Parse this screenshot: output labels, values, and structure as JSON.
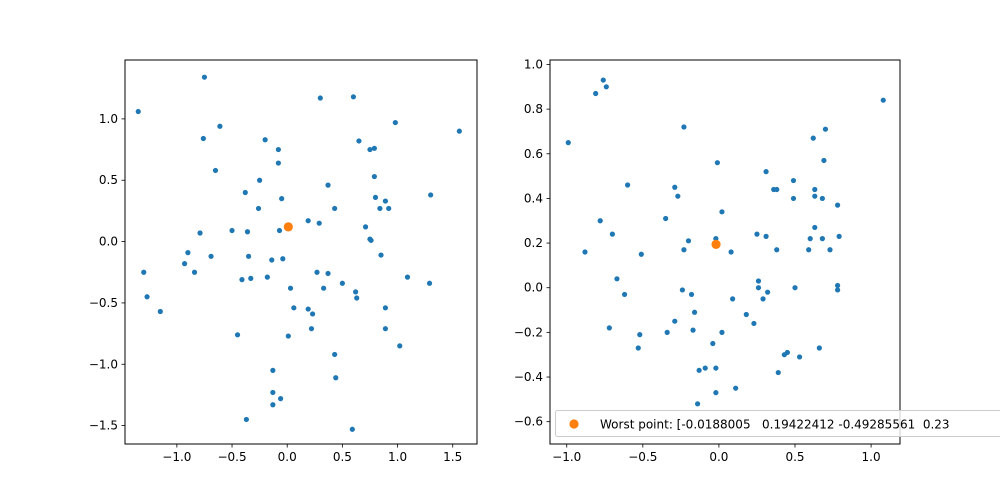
{
  "colors": {
    "points": "#1f77b4",
    "highlight": "#ff7f0e"
  },
  "chart_data": [
    {
      "type": "scatter",
      "xlim": [
        -1.47,
        1.72
      ],
      "ylim": [
        -1.65,
        1.48
      ],
      "xticks": [
        -1.0,
        -0.5,
        0.0,
        0.5,
        1.0,
        1.5
      ],
      "xtick_labels": [
        "−1.0",
        "−0.5",
        "0.0",
        "0.5",
        "1.0",
        "1.5"
      ],
      "yticks": [
        -1.5,
        -1.0,
        -0.5,
        0.0,
        0.5,
        1.0
      ],
      "ytick_labels": [
        "−1.5",
        "−1.0",
        "−0.5",
        "0.0",
        "0.5",
        "1.0"
      ],
      "series": [
        {
          "values": [
            [
              -1.35,
              1.06
            ],
            [
              -0.75,
              1.34
            ],
            [
              -0.61,
              0.94
            ],
            [
              -0.76,
              0.84
            ],
            [
              -0.65,
              0.58
            ],
            [
              -0.2,
              0.83
            ],
            [
              -0.08,
              0.75
            ],
            [
              -0.08,
              0.64
            ],
            [
              -0.25,
              0.5
            ],
            [
              -0.38,
              0.4
            ],
            [
              -0.05,
              0.35
            ],
            [
              -0.26,
              0.27
            ],
            [
              -0.5,
              0.09
            ],
            [
              -0.79,
              0.07
            ],
            [
              -0.36,
              0.08
            ],
            [
              -0.07,
              0.09
            ],
            [
              -0.69,
              -0.12
            ],
            [
              -0.9,
              -0.09
            ],
            [
              -0.93,
              -0.18
            ],
            [
              -0.84,
              -0.25
            ],
            [
              -1.3,
              -0.25
            ],
            [
              -1.27,
              -0.45
            ],
            [
              -1.15,
              -0.57
            ],
            [
              -0.35,
              -0.12
            ],
            [
              -0.14,
              -0.15
            ],
            [
              -0.04,
              -0.14
            ],
            [
              -0.18,
              -0.29
            ],
            [
              -0.33,
              -0.3
            ],
            [
              -0.41,
              -0.31
            ],
            [
              0.03,
              -0.38
            ],
            [
              0.06,
              -0.54
            ],
            [
              0.19,
              -0.55
            ],
            [
              0.23,
              -0.59
            ],
            [
              0.22,
              -0.71
            ],
            [
              0.01,
              -0.77
            ],
            [
              -0.45,
              -0.76
            ],
            [
              -0.13,
              -1.05
            ],
            [
              -0.13,
              -1.23
            ],
            [
              -0.13,
              -1.33
            ],
            [
              -0.06,
              -1.28
            ],
            [
              -0.37,
              -1.45
            ],
            [
              0.43,
              -0.92
            ],
            [
              0.44,
              -1.11
            ],
            [
              0.59,
              -1.53
            ],
            [
              0.27,
              -0.25
            ],
            [
              0.37,
              -0.26
            ],
            [
              0.33,
              -0.38
            ],
            [
              0.5,
              -0.34
            ],
            [
              0.62,
              -0.41
            ],
            [
              0.63,
              -0.46
            ],
            [
              0.3,
              1.17
            ],
            [
              0.6,
              1.18
            ],
            [
              0.65,
              0.82
            ],
            [
              0.75,
              0.75
            ],
            [
              0.79,
              0.76
            ],
            [
              0.98,
              0.97
            ],
            [
              0.37,
              0.46
            ],
            [
              0.43,
              0.27
            ],
            [
              0.19,
              0.17
            ],
            [
              0.29,
              0.15
            ],
            [
              0.79,
              0.53
            ],
            [
              0.8,
              0.36
            ],
            [
              0.71,
              0.12
            ],
            [
              0.75,
              0.02
            ],
            [
              0.76,
              0.01
            ],
            [
              0.84,
              0.27
            ],
            [
              0.89,
              0.33
            ],
            [
              0.92,
              0.27
            ],
            [
              0.85,
              -0.11
            ],
            [
              1.09,
              -0.29
            ],
            [
              0.89,
              -0.54
            ],
            [
              0.89,
              -0.71
            ],
            [
              1.02,
              -0.85
            ],
            [
              1.29,
              -0.34
            ],
            [
              1.3,
              0.38
            ],
            [
              1.56,
              0.9
            ]
          ]
        },
        {
          "values": [
            [
              0.01,
              0.12
            ]
          ]
        }
      ]
    },
    {
      "type": "scatter",
      "xlim": [
        -1.11,
        1.19
      ],
      "ylim": [
        -0.7,
        1.02
      ],
      "xticks": [
        -1.0,
        -0.5,
        0.0,
        0.5,
        1.0
      ],
      "xtick_labels": [
        "−1.0",
        "−0.5",
        "0.0",
        "0.5",
        "1.0"
      ],
      "yticks": [
        -0.6,
        -0.4,
        -0.2,
        0.0,
        0.2,
        0.4,
        0.6,
        0.8,
        1.0
      ],
      "ytick_labels": [
        "−0.6",
        "−0.4",
        "−0.2",
        "0.0",
        "0.2",
        "0.4",
        "0.6",
        "0.8",
        "1.0"
      ],
      "series": [
        {
          "values": [
            [
              -0.99,
              0.65
            ],
            [
              -0.76,
              0.93
            ],
            [
              -0.81,
              0.87
            ],
            [
              -0.74,
              0.9
            ],
            [
              -0.23,
              0.72
            ],
            [
              -0.01,
              0.56
            ],
            [
              -0.6,
              0.46
            ],
            [
              -0.29,
              0.45
            ],
            [
              -0.27,
              0.41
            ],
            [
              -0.35,
              0.31
            ],
            [
              -0.78,
              0.3
            ],
            [
              -0.7,
              0.24
            ],
            [
              -0.88,
              0.16
            ],
            [
              -0.2,
              0.21
            ],
            [
              -0.23,
              0.17
            ],
            [
              -0.51,
              0.15
            ],
            [
              0.02,
              0.34
            ],
            [
              -0.02,
              0.22
            ],
            [
              0.08,
              0.16
            ],
            [
              -0.67,
              0.04
            ],
            [
              -0.62,
              -0.03
            ],
            [
              -0.24,
              -0.01
            ],
            [
              -0.18,
              -0.03
            ],
            [
              -0.16,
              -0.11
            ],
            [
              -0.72,
              -0.18
            ],
            [
              -0.52,
              -0.21
            ],
            [
              -0.53,
              -0.27
            ],
            [
              -0.34,
              -0.2
            ],
            [
              -0.29,
              -0.15
            ],
            [
              -0.17,
              -0.19
            ],
            [
              -0.04,
              -0.25
            ],
            [
              0.02,
              -0.2
            ],
            [
              0.09,
              -0.05
            ],
            [
              0.18,
              -0.12
            ],
            [
              0.23,
              -0.16
            ],
            [
              -0.13,
              -0.37
            ],
            [
              -0.09,
              -0.36
            ],
            [
              -0.02,
              -0.36
            ],
            [
              -0.02,
              -0.47
            ],
            [
              -0.14,
              -0.52
            ],
            [
              0.11,
              -0.45
            ],
            [
              0.31,
              0.52
            ],
            [
              0.36,
              0.44
            ],
            [
              0.38,
              0.44
            ],
            [
              0.49,
              0.48
            ],
            [
              0.49,
              0.4
            ],
            [
              0.25,
              0.24
            ],
            [
              0.31,
              0.23
            ],
            [
              0.38,
              0.17
            ],
            [
              0.26,
              0.03
            ],
            [
              0.26,
              0.0
            ],
            [
              0.29,
              -0.05
            ],
            [
              0.32,
              -0.02
            ],
            [
              0.5,
              0.0
            ],
            [
              0.62,
              0.67
            ],
            [
              0.7,
              0.71
            ],
            [
              0.69,
              0.57
            ],
            [
              0.63,
              0.44
            ],
            [
              0.63,
              0.41
            ],
            [
              0.68,
              0.4
            ],
            [
              0.78,
              0.37
            ],
            [
              0.63,
              0.27
            ],
            [
              0.6,
              0.22
            ],
            [
              0.68,
              0.22
            ],
            [
              0.59,
              0.17
            ],
            [
              0.73,
              0.17
            ],
            [
              0.79,
              0.23
            ],
            [
              0.78,
              0.01
            ],
            [
              0.78,
              -0.01
            ],
            [
              0.66,
              -0.27
            ],
            [
              0.43,
              -0.3
            ],
            [
              0.45,
              -0.29
            ],
            [
              0.53,
              -0.31
            ],
            [
              0.39,
              -0.38
            ],
            [
              1.08,
              0.84
            ]
          ]
        },
        {
          "name": "Worst point: [-0.0188005   0.19422412 -0.49285561  0.23",
          "values": [
            [
              -0.0188005,
              0.19422412
            ]
          ]
        }
      ],
      "legend": "bottom-right"
    }
  ]
}
